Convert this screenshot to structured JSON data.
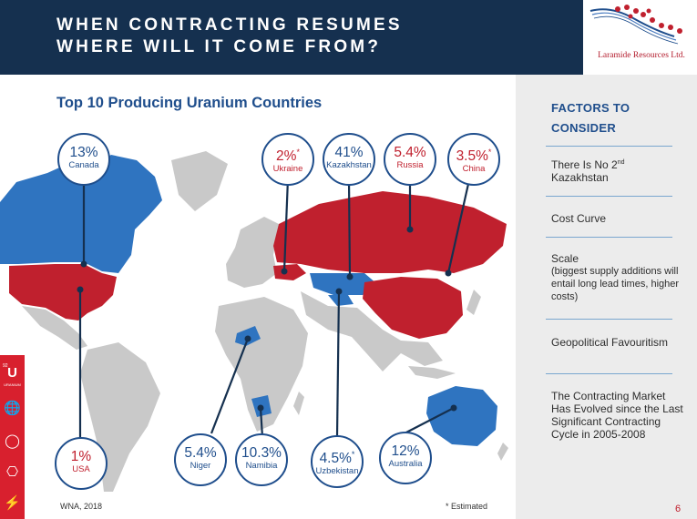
{
  "header": {
    "title_line1": "WHEN CONTRACTING RESUMES",
    "title_line2": "WHERE WILL IT COME FROM?",
    "logo_text": "Laramide Resources Ltd."
  },
  "chart_title": "Top 10 Producing Uranium Countries",
  "bubbles": [
    {
      "pct": "13%",
      "country": "Canada",
      "star": ""
    },
    {
      "pct": "1%",
      "country": "USA",
      "star": ""
    },
    {
      "pct": "2%",
      "country": "Ukraine",
      "star": "*"
    },
    {
      "pct": "41%",
      "country": "Kazakhstan",
      "star": ""
    },
    {
      "pct": "5.4%",
      "country": "Russia",
      "star": ""
    },
    {
      "pct": "3.5%",
      "country": "China",
      "star": "*"
    },
    {
      "pct": "5.4%",
      "country": "Niger",
      "star": ""
    },
    {
      "pct": "10.3%",
      "country": "Namibia",
      "star": ""
    },
    {
      "pct": "4.5%",
      "country": "Uzbekistan",
      "star": "*"
    },
    {
      "pct": "12%",
      "country": "Australia",
      "star": ""
    }
  ],
  "footer": {
    "source": "WNA, 2018",
    "estimated_note": "* Estimated",
    "page_number": "6"
  },
  "sidebar": {
    "heading_line1": "FACTORS TO",
    "heading_line2": "CONSIDER",
    "items": [
      {
        "line1": "There Is No 2",
        "sup": "nd",
        "line2": "Kazakhstan"
      },
      {
        "text": "Cost Curve"
      },
      {
        "title": "Scale",
        "sub": "(biggest supply additions will entail long lead times, higher costs)"
      },
      {
        "text": "Geopolitical Favouritism"
      },
      {
        "text": "The Contracting Market Has Evolved since the Last Significant Contracting Cycle in 2005-2008"
      }
    ]
  },
  "iconbar": {
    "element_number": "92",
    "element_symbol": "U",
    "element_name": "URANIUM",
    "icons": [
      "uranium-element-icon",
      "globe-icon",
      "lightbulb-icon",
      "plug-icon",
      "lightning-icon"
    ]
  },
  "colors": {
    "navy": "#15304f",
    "blue": "#1f4e8c",
    "map_blue": "#2f74c0",
    "map_red": "#c0202e",
    "land_grey": "#c9c9c9",
    "sidebar_bg": "#ececec"
  }
}
